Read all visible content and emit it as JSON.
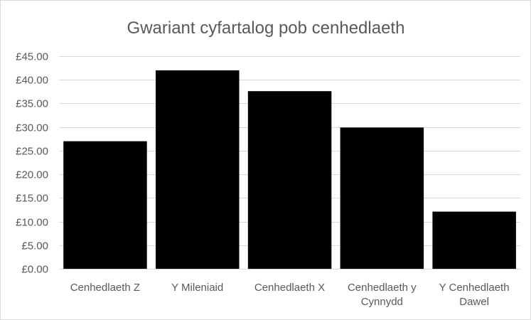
{
  "chart_data": {
    "type": "bar",
    "title": "Gwariant cyfartalog pob cenhedlaeth",
    "xlabel": "",
    "ylabel": "",
    "categories": [
      "Cenhedlaeth Z",
      "Y Mileniaid",
      "Cenhedlaeth X",
      "Cenhedlaeth y Cynnydd",
      "Y Cenhedlaeth Dawel"
    ],
    "category_lines": [
      [
        "Cenhedlaeth Z"
      ],
      [
        "Y Mileniaid"
      ],
      [
        "Cenhedlaeth X"
      ],
      [
        "Cenhedlaeth y",
        "Cynnydd"
      ],
      [
        "Y Cenhedlaeth",
        "Dawel"
      ]
    ],
    "values": [
      27.0,
      42.0,
      37.6,
      29.9,
      12.1
    ],
    "ylim": [
      0,
      45
    ],
    "yticks": [
      0,
      5,
      10,
      15,
      20,
      25,
      30,
      35,
      40,
      45
    ],
    "ytick_labels": [
      "£0.00",
      "£5.00",
      "£10.00",
      "£15.00",
      "£20.00",
      "£25.00",
      "£30.00",
      "£35.00",
      "£40.00",
      "£45.00"
    ],
    "grid": true,
    "legend": "none",
    "colors": {
      "bar": "#000000",
      "grid": "#d9d9d9",
      "text": "#595959",
      "border": "#d9d9d9"
    }
  }
}
